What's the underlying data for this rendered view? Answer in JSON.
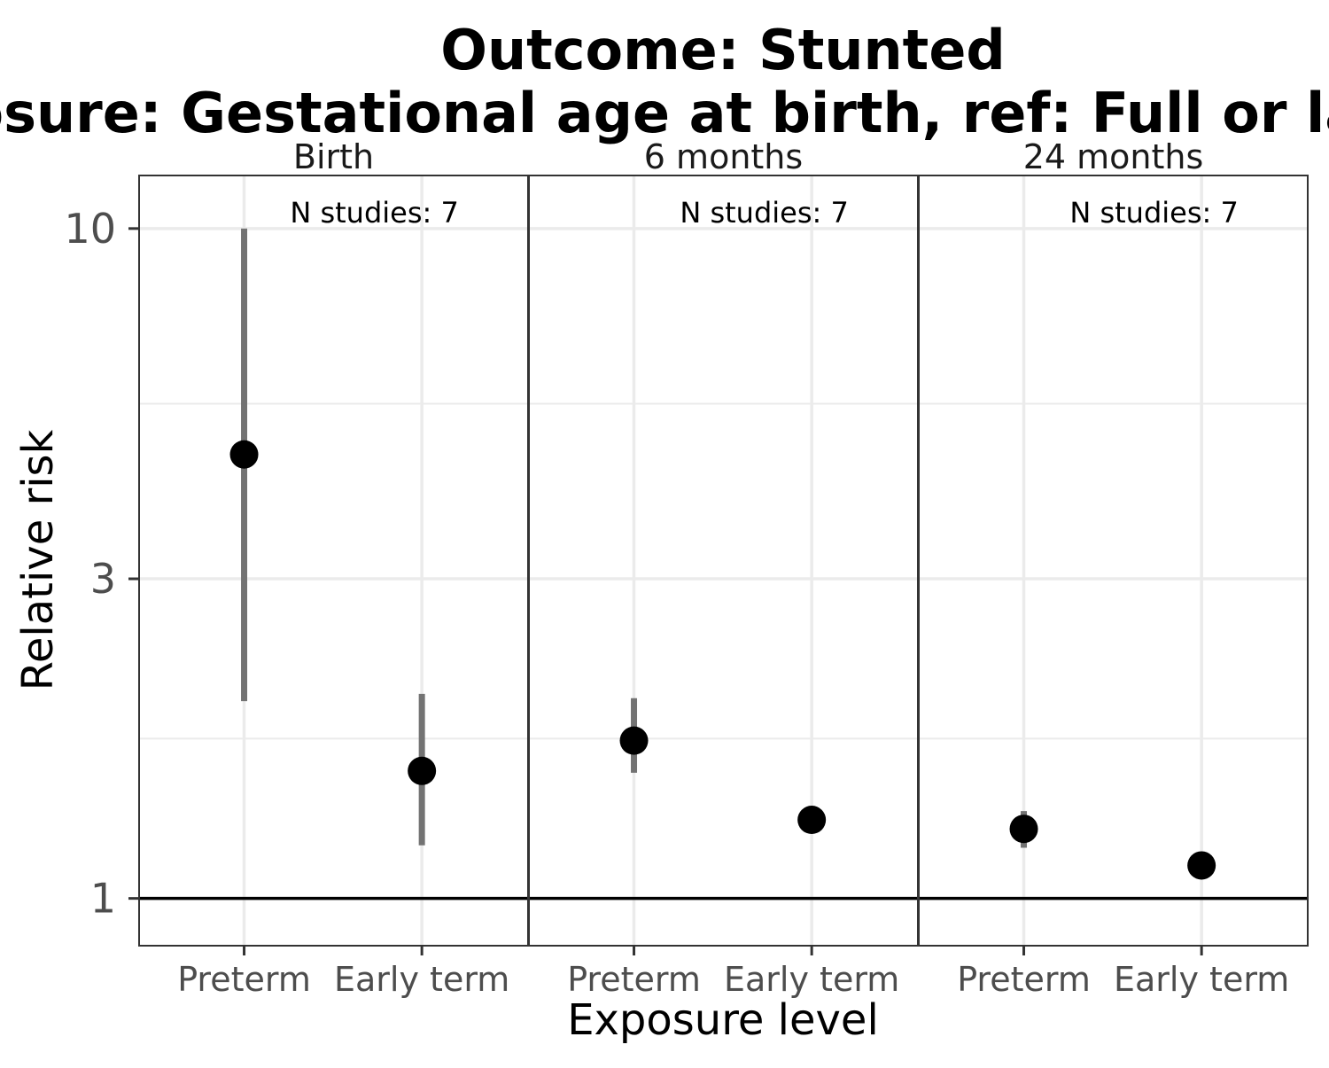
{
  "chart_data": {
    "type": "scatter",
    "title_lines": [
      "Outcome: Stunted",
      "Exposure: Gestational age at birth, ref: Full or late term"
    ],
    "xlabel": "Exposure level",
    "ylabel": "Relative risk",
    "y_scale": "log",
    "ylim": [
      0.85,
      12
    ],
    "yticks": [
      1,
      3,
      10
    ],
    "ytick_labels": [
      "1",
      "3",
      "10"
    ],
    "y_minor_ticks": [
      1.732,
      5.477
    ],
    "reference_line": 1,
    "categories": [
      "Preterm",
      "Early term"
    ],
    "grid": true,
    "colors": {
      "point": "#000000",
      "ci": "#737373",
      "grid": "#ebebeb",
      "panel_border": "#333333",
      "reference": "#000000"
    },
    "panels": [
      {
        "label": "Birth",
        "annotation": "N studies: 7",
        "points": [
          {
            "x": "Preterm",
            "estimate": 4.6,
            "ci_lower": 1.97,
            "ci_upper": 10.0
          },
          {
            "x": "Early term",
            "estimate": 1.55,
            "ci_lower": 1.2,
            "ci_upper": 2.02
          }
        ]
      },
      {
        "label": "6 months",
        "annotation": "N studies: 7",
        "points": [
          {
            "x": "Preterm",
            "estimate": 1.72,
            "ci_lower": 1.54,
            "ci_upper": 1.99
          },
          {
            "x": "Early term",
            "estimate": 1.31,
            "ci_lower": 1.26,
            "ci_upper": 1.37
          }
        ]
      },
      {
        "label": "24 months",
        "annotation": "N studies: 7",
        "points": [
          {
            "x": "Preterm",
            "estimate": 1.27,
            "ci_lower": 1.19,
            "ci_upper": 1.35
          },
          {
            "x": "Early term",
            "estimate": 1.12,
            "ci_lower": 1.12,
            "ci_upper": 1.12
          }
        ]
      }
    ]
  }
}
